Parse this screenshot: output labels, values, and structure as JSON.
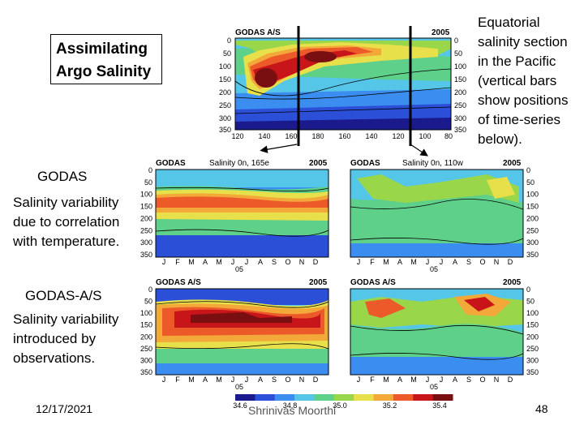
{
  "slide": {
    "title": "Assimilating Argo Salinity",
    "right_caption_lines": [
      "Equatorial",
      "salinity section",
      "in the Pacific",
      "(vertical bars",
      "show positions",
      "of time-series",
      "below)."
    ],
    "godas_heading": "GODAS",
    "godas_desc_lines": [
      "Salinity variability",
      "due to correlation",
      "with temperature."
    ],
    "godas_as_heading": "GODAS-A/S",
    "godas_as_desc_lines": [
      "Salinity variability",
      "introduced by",
      "observations."
    ],
    "date": "12/17/2021",
    "author": "Shrinivas Moorthi",
    "page_number": "48"
  },
  "top_panel": {
    "label_left": "GODAS A/S",
    "label_right": "2005",
    "y_ticks": [
      "0",
      "50",
      "100",
      "150",
      "200",
      "250",
      "300",
      "350"
    ],
    "x_ticks": [
      "120",
      "140",
      "160",
      "180",
      "160",
      "140",
      "120",
      "100",
      "80"
    ]
  },
  "panels": [
    {
      "label_left": "GODAS",
      "label_mid": "Salinity 0n, 165e",
      "label_right": "2005"
    },
    {
      "label_left": "GODAS",
      "label_mid": "Salinity 0n, 110w",
      "label_right": "2005"
    },
    {
      "label_left": "GODAS A/S",
      "label_mid": "",
      "label_right": "2005"
    },
    {
      "label_left": "GODAS A/S",
      "label_mid": "",
      "label_right": "2005"
    }
  ],
  "month_ticks": [
    "J",
    "F",
    "M",
    "A",
    "M",
    "J",
    "J",
    "A",
    "S",
    "O",
    "N",
    "D"
  ],
  "year_tick": "05",
  "colorbar": {
    "labels": [
      "34.6",
      "34.8",
      "35.0",
      "35.2",
      "35.4"
    ],
    "colors": [
      "#1a1a8c",
      "#2c4fd8",
      "#3b8df0",
      "#56c6e8",
      "#5fd08a",
      "#9ad64a",
      "#e8e04a",
      "#f3a83a",
      "#ec5a2a",
      "#c8151a",
      "#7a0f12"
    ]
  },
  "colors": {
    "deep": "#7a0f12",
    "red": "#c8151a",
    "orange": "#ec5a2a",
    "amber": "#f3a83a",
    "yellow": "#e8e04a",
    "lime": "#9ad64a",
    "green": "#5fd08a",
    "cyan": "#56c6e8",
    "blue": "#3b8df0",
    "navy": "#2c4fd8"
  }
}
